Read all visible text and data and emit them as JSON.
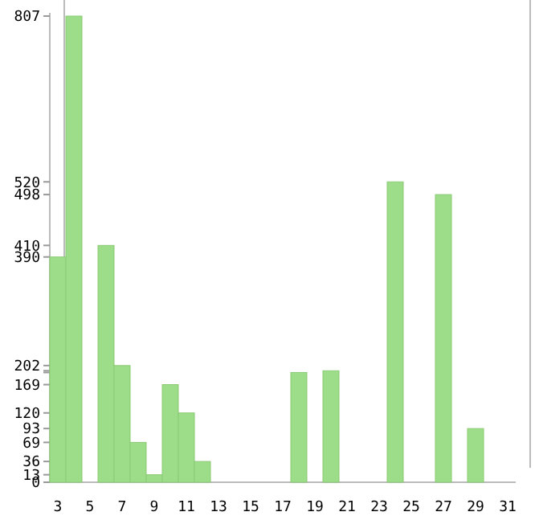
{
  "chart_data": {
    "type": "bar",
    "categories": [
      "3",
      null,
      "5",
      null,
      "7",
      null,
      "9",
      null,
      "11",
      null,
      "13",
      null,
      "15",
      null,
      "17",
      null,
      "19",
      null,
      "21",
      null,
      "23",
      null,
      "25",
      null,
      "27",
      null,
      "29",
      null,
      "31"
    ],
    "values": [
      390,
      807,
      0,
      410,
      202,
      69,
      13,
      169,
      120,
      36,
      0,
      0,
      0,
      0,
      0,
      190,
      0,
      193,
      0,
      0,
      0,
      520,
      0,
      0,
      498,
      0,
      93,
      0,
      0
    ],
    "color": "#9ddc88",
    "ylim": [
      0,
      807
    ],
    "yticks": [
      0,
      13,
      36,
      69,
      93,
      120,
      169,
      {
        "value": 190,
        "label": null
      },
      {
        "value": 193,
        "label": null
      },
      202,
      390,
      410,
      498,
      520,
      807
    ],
    "grid": false
  }
}
